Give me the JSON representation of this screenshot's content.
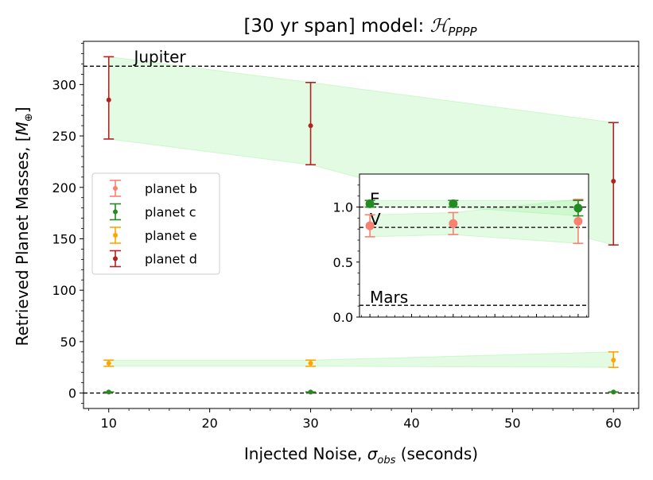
{
  "chart_data": {
    "type": "scatter",
    "title": "[30 yr span] model: ",
    "title_math": "ℋ",
    "title_sub": "PPPP",
    "xlabel_prefix": "Injected Noise, ",
    "xlabel_sym": "σ",
    "xlabel_sub": "obs",
    "xlabel_suffix": " (seconds)",
    "ylabel_prefix": "Retrieved Planet Masses, [",
    "ylabel_sym": "M",
    "ylabel_sub": "⊕",
    "ylabel_suffix": "]",
    "xlim": [
      7.5,
      62.5
    ],
    "ylim": [
      -15,
      342
    ],
    "xticks": [
      10,
      20,
      30,
      40,
      50,
      60
    ],
    "yticks": [
      0,
      50,
      100,
      150,
      200,
      250,
      300
    ],
    "reference_lines": [
      {
        "label": "Jupiter",
        "y": 317.8
      },
      {
        "label": "",
        "y": 0
      }
    ],
    "series": [
      {
        "name": "planet b",
        "color": "#fa8072",
        "x": [
          10,
          30,
          60
        ],
        "y": [
          0.83,
          0.85,
          0.87
        ],
        "err_low": [
          0.1,
          0.1,
          0.2
        ],
        "err_high": [
          0.1,
          0.1,
          0.2
        ]
      },
      {
        "name": "planet c",
        "color": "#228b22",
        "x": [
          10,
          30,
          60
        ],
        "y": [
          1.03,
          1.03,
          0.99
        ],
        "err_low": [
          0.03,
          0.03,
          0.07
        ],
        "err_high": [
          0.03,
          0.03,
          0.07
        ]
      },
      {
        "name": "planet e",
        "color": "#ffa500",
        "x": [
          10,
          30,
          60
        ],
        "y": [
          29,
          29,
          32
        ],
        "err_low": [
          3,
          3,
          7
        ],
        "err_high": [
          3,
          3,
          8
        ]
      },
      {
        "name": "planet d",
        "color": "#b22222",
        "x": [
          10,
          30,
          60
        ],
        "y": [
          285,
          260,
          206
        ],
        "err_low": [
          38,
          38,
          62
        ],
        "err_high": [
          42,
          42,
          57
        ]
      }
    ],
    "bands": [
      {
        "color": "#90ee90",
        "x": [
          10,
          30,
          60
        ],
        "lower": [
          247,
          222,
          144
        ],
        "upper": [
          327,
          302,
          263
        ]
      },
      {
        "color": "#90ee90",
        "x": [
          10,
          30,
          60
        ],
        "lower": [
          26,
          26,
          25
        ],
        "upper": [
          32,
          32,
          40
        ]
      }
    ],
    "legend_position": "center-left",
    "inset": {
      "xlim": [
        7.5,
        62.5
      ],
      "ylim": [
        0,
        1.3
      ],
      "yticks": [
        0.0,
        0.5,
        1.0
      ],
      "ytick_labels": [
        "0.0",
        "0.5",
        "1.0"
      ],
      "xticks": [
        10,
        20,
        30,
        40,
        50,
        60
      ],
      "reference_lines": [
        {
          "label": "E",
          "y": 1.0
        },
        {
          "label": "V",
          "y": 0.815
        },
        {
          "label": "Mars",
          "y": 0.107
        }
      ],
      "bands": [
        {
          "color": "#90ee90",
          "x": [
            10,
            30,
            60
          ],
          "lower": [
            0.73,
            0.75,
            0.67
          ],
          "upper": [
            0.93,
            0.95,
            1.07
          ]
        },
        {
          "color": "#90ee90",
          "x": [
            10,
            30,
            60
          ],
          "lower": [
            1.0,
            1.0,
            0.92
          ],
          "upper": [
            1.06,
            1.06,
            1.06
          ]
        }
      ]
    }
  }
}
